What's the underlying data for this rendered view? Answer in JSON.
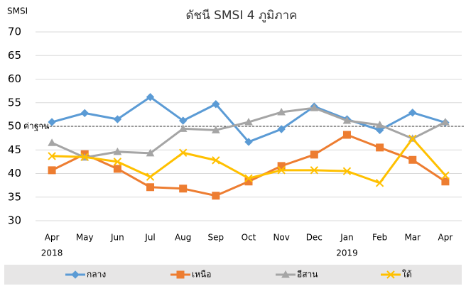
{
  "chart_data": {
    "type": "line",
    "title": "ดัชนี SMSI 4 ภูมิภาค",
    "y_label": "SMSI",
    "categories": [
      "Apr",
      "May",
      "Jun",
      "Jul",
      "Aug",
      "Sep",
      "Oct",
      "Nov",
      "Dec",
      "Jan",
      "Feb",
      "Mar",
      "Apr"
    ],
    "years": [
      "2018",
      null,
      null,
      null,
      null,
      null,
      null,
      null,
      null,
      "2019",
      null,
      null,
      null
    ],
    "ylim": [
      30,
      70
    ],
    "yticks": [
      30,
      35,
      40,
      45,
      50,
      55,
      60,
      65,
      70
    ],
    "grid": true,
    "reference_line": {
      "value": 50,
      "label": "ค่าฐาน"
    },
    "legend": "bottom",
    "series": [
      {
        "name": "กลาง",
        "color": "#5b9bd5",
        "marker": "diamond",
        "values": [
          50.9,
          52.8,
          51.5,
          56.2,
          51.2,
          54.7,
          46.7,
          49.4,
          54.2,
          51.5,
          49.2,
          52.9,
          50.8
        ]
      },
      {
        "name": "เหนือ",
        "color": "#ed7d31",
        "marker": "square",
        "values": [
          40.7,
          44.1,
          41.0,
          37.1,
          36.8,
          35.3,
          38.3,
          41.6,
          44.0,
          48.2,
          45.5,
          42.9,
          38.3
        ]
      },
      {
        "name": "อีสาน",
        "color": "#a5a5a5",
        "marker": "triangle",
        "values": [
          46.5,
          43.4,
          44.6,
          44.3,
          49.5,
          49.2,
          50.9,
          53.0,
          53.9,
          51.2,
          50.3,
          47.4,
          50.9
        ]
      },
      {
        "name": "ใต้",
        "color": "#ffc000",
        "marker": "x",
        "values": [
          43.7,
          43.5,
          42.5,
          39.3,
          44.4,
          42.8,
          39.0,
          40.7,
          40.7,
          40.5,
          38.0,
          47.4,
          39.6
        ]
      }
    ]
  }
}
